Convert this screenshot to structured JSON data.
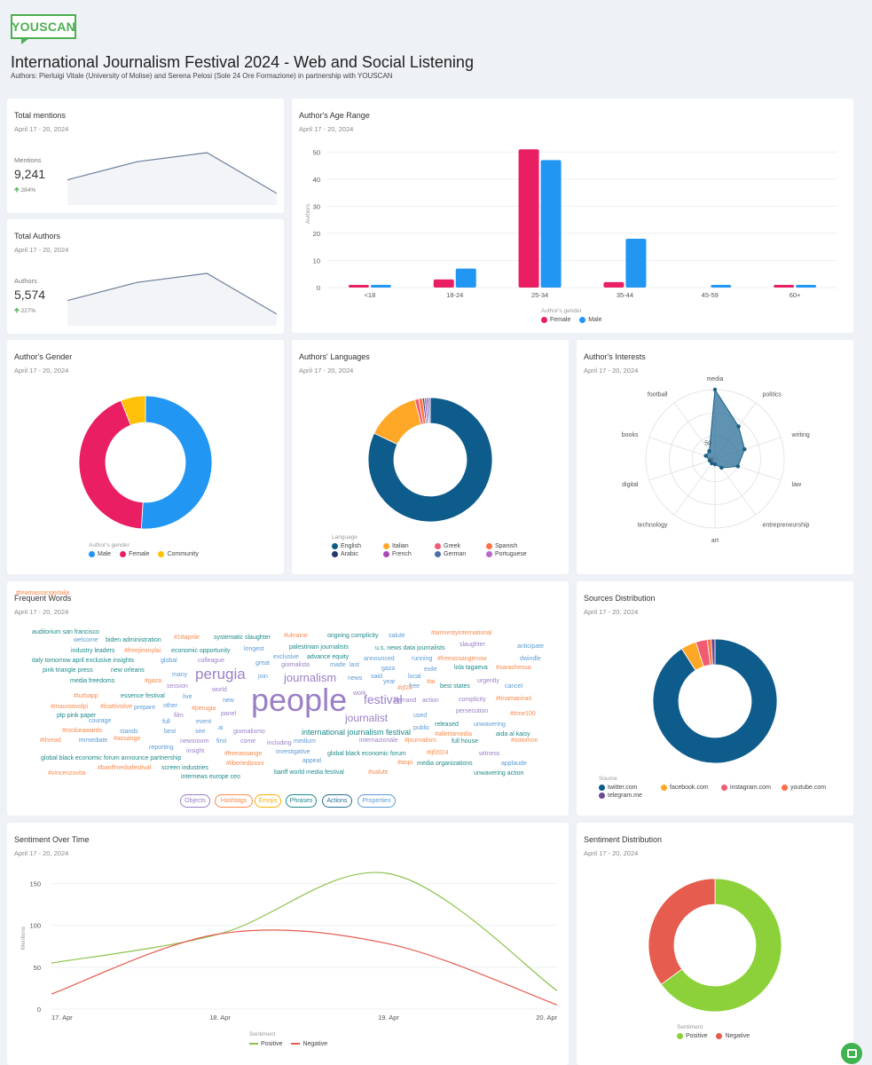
{
  "brand": {
    "logo": "YOUSCAN"
  },
  "page": {
    "title": "International Journalism Festival 2024 - Web and Social Listening",
    "subtitle": "Authors: Pierluigi Vitale (University of Molise) and Serena Pelosi (Sole 24 Ore Formazione) in partnership with YOUSCAN"
  },
  "date_range": "April 17 - 20, 2024",
  "total_mentions": {
    "title": "Total mentions",
    "label": "Mentions",
    "value": "9,241",
    "growth": "284%",
    "trend": [
      4,
      8,
      10,
      1
    ]
  },
  "total_authors": {
    "title": "Total Authors",
    "label": "Authors",
    "value": "5,574",
    "growth": "227%",
    "trend": [
      4,
      8,
      10,
      1
    ]
  },
  "age_range": {
    "title": "Author's Age Range",
    "legend_title": "Author's gender",
    "chart_data": {
      "type": "bar",
      "title": "Author's Age Range",
      "ylabel": "Authors",
      "categories": [
        "<18",
        "18-24",
        "25-34",
        "35-44",
        "45-59",
        "60+"
      ],
      "yticks": [
        "0",
        "10",
        "20",
        "30",
        "40",
        "50"
      ],
      "ylim": [
        0,
        55
      ],
      "series": [
        {
          "name": "Female",
          "color": "#e91e63",
          "values": [
            1,
            3,
            51,
            2,
            0,
            1
          ]
        },
        {
          "name": "Male",
          "color": "#2196f3",
          "values": [
            1,
            7,
            47,
            18,
            1,
            1
          ]
        }
      ]
    }
  },
  "gender": {
    "title": "Author's Gender",
    "legend_title": "Author's gender",
    "chart_data": {
      "type": "pie",
      "labels": [
        "Male",
        "Female",
        "Community"
      ],
      "values": [
        51,
        43,
        6
      ],
      "colors": [
        "#2196f3",
        "#e91e63",
        "#ffc107"
      ]
    }
  },
  "languages": {
    "title": "Authors' Languages",
    "legend_title": "Language",
    "chart_data": {
      "type": "pie",
      "labels": [
        "English",
        "Italian",
        "Greek",
        "Spanish",
        "Arabic",
        "French",
        "German",
        "Portuguese"
      ],
      "values": [
        82,
        14,
        1,
        1,
        0.5,
        0.5,
        0.5,
        0.5
      ],
      "colors": [
        "#0d5c8c",
        "#ffa726",
        "#ef5c73",
        "#ff7043",
        "#1e3a6e",
        "#ab47bc",
        "#4b6fa8",
        "#ba68c8"
      ]
    }
  },
  "interests": {
    "title": "Author's Interests",
    "scale_labels": [
      "0",
      "50"
    ],
    "chart_data": {
      "type": "radar",
      "axes": [
        "media",
        "politics",
        "writing",
        "law",
        "entrepreneurship",
        "art",
        "technology",
        "digital",
        "books",
        "football"
      ],
      "values": [
        100,
        58,
        45,
        35,
        16,
        8,
        8,
        8,
        14,
        14
      ],
      "max": 100,
      "color": "#2a6f97"
    }
  },
  "frequent_words": {
    "title": "Frequent Words",
    "words": [
      {
        "t": "auditorium san francisco",
        "c": "#1e8a8a"
      },
      {
        "t": "welcome",
        "c": "#5b9bd5"
      },
      {
        "t": "biden administration",
        "c": "#1e8a8a"
      },
      {
        "t": "#18aprile",
        "c": "#ff8a4c"
      },
      {
        "t": "systematic slaughter",
        "c": "#1e8a8a"
      },
      {
        "t": "#ukraine",
        "c": "#ff8a4c"
      },
      {
        "t": "ongoing complicity",
        "c": "#1e8a8a"
      },
      {
        "t": "salute",
        "c": "#5b9bd5"
      },
      {
        "t": "#amnestyinternational",
        "c": "#ff8a4c"
      },
      {
        "t": "industry leaders",
        "c": "#1e8a8a"
      },
      {
        "t": "#freejimmylai",
        "c": "#ff8a4c"
      },
      {
        "t": "economic opportunity",
        "c": "#1e8a8a"
      },
      {
        "t": "longest",
        "c": "#5b9bd5"
      },
      {
        "t": "palestinian journalists",
        "c": "#1e8a8a"
      },
      {
        "t": "u.s. news data journalists",
        "c": "#1e8a8a"
      },
      {
        "t": "slaughter",
        "c": "#9b7fc7"
      },
      {
        "t": "anticipate",
        "c": "#5b9bd5"
      },
      {
        "t": "italy tomorrow april exclusive insights",
        "c": "#1e8a8a"
      },
      {
        "t": "global",
        "c": "#5b9bd5"
      },
      {
        "t": "colleague",
        "c": "#9b7fc7"
      },
      {
        "t": "exclusive",
        "c": "#5b9bd5"
      },
      {
        "t": "advance equity",
        "c": "#1e8a8a"
      },
      {
        "t": "announced",
        "c": "#5b9bd5"
      },
      {
        "t": "running",
        "c": "#5b9bd5"
      },
      {
        "t": "#freeassangenow",
        "c": "#ff8a4c"
      },
      {
        "t": "dwindle",
        "c": "#5b9bd5"
      },
      {
        "t": "pink triangle press",
        "c": "#1e8a8a"
      },
      {
        "t": "new orleans",
        "c": "#1e8a8a"
      },
      {
        "t": "great",
        "c": "#5b9bd5"
      },
      {
        "t": "giornalista",
        "c": "#9b7fc7"
      },
      {
        "t": "made",
        "c": "#5b9bd5"
      },
      {
        "t": "last",
        "c": "#5b9bd5"
      },
      {
        "t": "gaza",
        "c": "#5b9bd5"
      },
      {
        "t": "exile",
        "c": "#5b9bd5"
      },
      {
        "t": "lola tagaeva",
        "c": "#1e8a8a"
      },
      {
        "t": "#sarachessa",
        "c": "#ff8a4c"
      },
      {
        "t": "media freedoms",
        "c": "#1e8a8a"
      },
      {
        "t": "#gaza",
        "c": "#ff8a4c"
      },
      {
        "t": "many",
        "c": "#5b9bd5"
      },
      {
        "t": "perugia",
        "c": "#9b7fc7"
      },
      {
        "t": "join",
        "c": "#5b9bd5"
      },
      {
        "t": "journalism",
        "c": "#9b7fc7"
      },
      {
        "t": "news",
        "c": "#5b9bd5"
      },
      {
        "t": "said",
        "c": "#5b9bd5"
      },
      {
        "t": "local",
        "c": "#5b9bd5"
      },
      {
        "t": "#ai",
        "c": "#ff8a4c"
      },
      {
        "t": "urgently",
        "c": "#9b7fc7"
      },
      {
        "t": "session",
        "c": "#9b7fc7"
      },
      {
        "t": "year",
        "c": "#5b9bd5"
      },
      {
        "t": "free",
        "c": "#5b9bd5"
      },
      {
        "t": "best states",
        "c": "#1e8a8a"
      },
      {
        "t": "cancel",
        "c": "#5b9bd5"
      },
      {
        "t": "#turbapp",
        "c": "#ff8a4c"
      },
      {
        "t": "essence festival",
        "c": "#1e8a8a"
      },
      {
        "t": "live",
        "c": "#5b9bd5"
      },
      {
        "t": "world",
        "c": "#9b7fc7"
      },
      {
        "t": "people",
        "c": "#9b7fc7"
      },
      {
        "t": "work",
        "c": "#9b7fc7"
      },
      {
        "t": "#ijf24",
        "c": "#ff8a4c"
      },
      {
        "t": "festival",
        "c": "#9b7fc7"
      },
      {
        "t": "demand",
        "c": "#9b7fc7"
      },
      {
        "t": "action",
        "c": "#9b7fc7"
      },
      {
        "t": "complicity",
        "c": "#9b7fc7"
      },
      {
        "t": "#tinamarinari",
        "c": "#ff8a4c"
      },
      {
        "t": "#mauroovolpi",
        "c": "#ff8a4c"
      },
      {
        "t": "#lcattivolive",
        "c": "#ff8a4c"
      },
      {
        "t": "prepare",
        "c": "#5b9bd5"
      },
      {
        "t": "other",
        "c": "#5b9bd5"
      },
      {
        "t": "new",
        "c": "#5b9bd5"
      },
      {
        "t": "persecution",
        "c": "#9b7fc7"
      },
      {
        "t": "#time100",
        "c": "#ff8a4c"
      },
      {
        "t": "ptp pink paper",
        "c": "#1e8a8a"
      },
      {
        "t": "film",
        "c": "#9b7fc7"
      },
      {
        "t": "#perugia",
        "c": "#ff8a4c"
      },
      {
        "t": "panel",
        "c": "#9b7fc7"
      },
      {
        "t": "journalist",
        "c": "#9b7fc7"
      },
      {
        "t": "used",
        "c": "#5b9bd5"
      },
      {
        "t": "released",
        "c": "#1e8a8a"
      },
      {
        "t": "unwavering",
        "c": "#5b9bd5"
      },
      {
        "t": "courage",
        "c": "#5b9bd5"
      },
      {
        "t": "full",
        "c": "#5b9bd5"
      },
      {
        "t": "event",
        "c": "#5b9bd5"
      },
      {
        "t": "public",
        "c": "#5b9bd5"
      },
      {
        "t": "#rockieawards",
        "c": "#ff8a4c"
      },
      {
        "t": "stands",
        "c": "#5b9bd5"
      },
      {
        "t": "best",
        "c": "#5b9bd5"
      },
      {
        "t": "see",
        "c": "#5b9bd5"
      },
      {
        "t": "ai",
        "c": "#5b9bd5"
      },
      {
        "t": "giornalismo",
        "c": "#9b7fc7"
      },
      {
        "t": "international journalism festival",
        "c": "#1e8a8a"
      },
      {
        "t": "#allertamedia",
        "c": "#ff8a4c"
      },
      {
        "t": "aida al kaisy",
        "c": "#1e8a8a"
      },
      {
        "t": "#thread",
        "c": "#ff8a4c"
      },
      {
        "t": "immediate",
        "c": "#5b9bd5"
      },
      {
        "t": "#assange",
        "c": "#ff8a4c"
      },
      {
        "t": "newsroom",
        "c": "#9b7fc7"
      },
      {
        "t": "first",
        "c": "#5b9bd5"
      },
      {
        "t": "come",
        "c": "#9b7fc7"
      },
      {
        "t": "medium",
        "c": "#5b9bd5"
      },
      {
        "t": "internazionale",
        "c": "#9b7fc7"
      },
      {
        "t": "#journalism",
        "c": "#ff8a4c"
      },
      {
        "t": "full house",
        "c": "#1e8a8a"
      },
      {
        "t": "#solomon",
        "c": "#ff8a4c"
      },
      {
        "t": "reporting",
        "c": "#5b9bd5"
      },
      {
        "t": "insight",
        "c": "#9b7fc7"
      },
      {
        "t": "including",
        "c": "#9b7fc7"
      },
      {
        "t": "investigative",
        "c": "#5b9bd5"
      },
      {
        "t": "global black economic forum",
        "c": "#1e8a8a"
      },
      {
        "t": "#ijf2024",
        "c": "#ff8a4c"
      },
      {
        "t": "witness",
        "c": "#9b7fc7"
      },
      {
        "t": "global black economic forum announce partnership",
        "c": "#1e8a8a"
      },
      {
        "t": "#freeassange",
        "c": "#ff8a4c"
      },
      {
        "t": "appeal",
        "c": "#5b9bd5"
      },
      {
        "t": "#anpi",
        "c": "#ff8a4c"
      },
      {
        "t": "media organizations",
        "c": "#1e8a8a"
      },
      {
        "t": "applaude",
        "c": "#5b9bd5"
      },
      {
        "t": "#banffmediafestival",
        "c": "#ff8a4c"
      },
      {
        "t": "screen industries",
        "c": "#1e8a8a"
      },
      {
        "t": "#liberiedizioni",
        "c": "#ff8a4c"
      },
      {
        "t": "#vincenzovita",
        "c": "#ff8a4c"
      },
      {
        "t": "internews europe ceo",
        "c": "#1e8a8a"
      },
      {
        "t": "banff world media festival",
        "c": "#1e8a8a"
      },
      {
        "t": "#salute",
        "c": "#ff8a4c"
      },
      {
        "t": "unwavering action",
        "c": "#1e8a8a"
      },
      {
        "t": "#teamassangeitalia",
        "c": "#ff8a4c"
      }
    ],
    "chips": [
      {
        "label": "Objects",
        "color": "#9b7fc7"
      },
      {
        "label": "Hashtags",
        "color": "#ff8a4c"
      },
      {
        "label": "Emojis",
        "color": "#f4b400"
      },
      {
        "label": "Phrases",
        "color": "#1e8a8a"
      },
      {
        "label": "Actions",
        "color": "#2a6f97"
      },
      {
        "label": "Properties",
        "color": "#5b9bd5"
      }
    ]
  },
  "sources": {
    "title": "Sources Distribution",
    "legend_title": "Source",
    "chart_data": {
      "type": "pie",
      "labels": [
        "twitter.com",
        "facebook.com",
        "instagram.com",
        "youtube.com",
        "telegram.me"
      ],
      "values": [
        91,
        4,
        3,
        1,
        1
      ],
      "colors": [
        "#0d5c8c",
        "#ffa726",
        "#ef5c73",
        "#ff7043",
        "#6a4c93"
      ]
    }
  },
  "sentiment_time": {
    "title": "Sentiment Over Time",
    "legend_title": "Sentiment",
    "ylabel": "Mentions",
    "chart_data": {
      "type": "line",
      "x": [
        "17. Apr",
        "18. Apr",
        "19. Apr",
        "20. Apr"
      ],
      "yticks": [
        "0",
        "50",
        "100",
        "150"
      ],
      "ylim": [
        0,
        175
      ],
      "series": [
        {
          "name": "Positive",
          "color": "#8bc34a",
          "values": [
            55,
            90,
            162,
            22
          ]
        },
        {
          "name": "Negative",
          "color": "#e65c4f",
          "values": [
            18,
            90,
            78,
            5
          ]
        }
      ]
    }
  },
  "sentiment_dist": {
    "title": "Sentiment Distribution",
    "legend_title": "Sentiment",
    "chart_data": {
      "type": "pie",
      "labels": [
        "Positive",
        "Negative"
      ],
      "values": [
        65,
        35
      ],
      "colors": [
        "#8cd139",
        "#e65c4f"
      ]
    }
  }
}
